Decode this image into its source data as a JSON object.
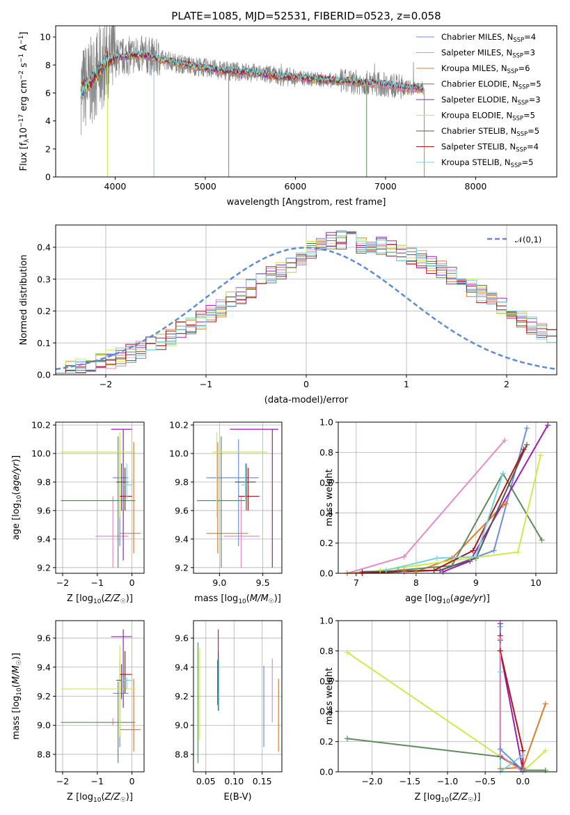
{
  "figure": {
    "title": "PLATE=1085, MJD=52531, FIBERID=0523, z=0.058"
  },
  "colors": {
    "chab_miles": "#6a8fd8",
    "salp_miles": "#e68ac4",
    "krou_miles": "#e07b2a",
    "chab_elodie": "#5c8a5c",
    "salp_elodie": "#9b1bb8",
    "krou_elodie": "#cfe84a",
    "chab_stelib": "#555555",
    "salp_stelib": "#b01515",
    "krou_stelib": "#72d6e0",
    "data_gray": "#808080",
    "gauss": "#5b8bd6"
  },
  "chart_data": [
    {
      "id": "spectrum",
      "type": "line",
      "xlabel": "wavelength [Angstrom, rest frame]",
      "ylabel": "Flux [f",
      "ylabel_full": "Flux [fλ10−17 erg cm−2 s−1 A−1]",
      "xlim": [
        3340,
        8900
      ],
      "ylim": [
        0,
        10.8
      ],
      "xticks": [
        "4000",
        "5000",
        "6000",
        "7000",
        "8000"
      ],
      "yticks": [
        "0",
        "2",
        "4",
        "6",
        "8",
        "10"
      ],
      "continuum": {
        "x": [
          3620,
          3700,
          3800,
          3900,
          4000,
          4100,
          4200,
          4300,
          4400,
          4500,
          4600,
          4700,
          4800,
          4900,
          5000,
          5200,
          5400,
          5600,
          5800,
          6000,
          6200,
          6400,
          6600,
          6800,
          7000,
          7200,
          7400
        ],
        "y": [
          6.2,
          6.6,
          7.4,
          8.3,
          8.5,
          8.6,
          8.7,
          8.7,
          8.6,
          8.4,
          8.3,
          8.1,
          8.0,
          7.9,
          7.8,
          7.6,
          7.5,
          7.4,
          7.2,
          7.1,
          7.0,
          6.9,
          6.8,
          6.7,
          6.6,
          6.4,
          6.3
        ]
      },
      "legend": [
        {
          "label": "Chabrier MILES, N",
          "sub": "SSP",
          "suffix": "=4",
          "color_key": "chab_miles"
        },
        {
          "label": "Salpeter MILES, N",
          "sub": "SSP",
          "suffix": "=3",
          "color_key": "salp_miles"
        },
        {
          "label": "Kroupa MILES, N",
          "sub": "SSP",
          "suffix": "=6",
          "color_key": "krou_miles"
        },
        {
          "label": "Chabrier ELODIE, N",
          "sub": "SSP",
          "suffix": "=5",
          "color_key": "chab_elodie"
        },
        {
          "label": "Salpeter ELODIE, N",
          "sub": "SSP",
          "suffix": "=3",
          "color_key": "salp_elodie"
        },
        {
          "label": "Kroupa ELODIE, N",
          "sub": "SSP",
          "suffix": "=5",
          "color_key": "krou_elodie"
        },
        {
          "label": "Chabrier STELIB, N",
          "sub": "SSP",
          "suffix": "=5",
          "color_key": "chab_stelib"
        },
        {
          "label": "Salpeter STELIB, N",
          "sub": "SSP",
          "suffix": "=4",
          "color_key": "salp_stelib"
        },
        {
          "label": "Kroupa STELIB, N",
          "sub": "SSP",
          "suffix": "=5",
          "color_key": "krou_stelib"
        }
      ]
    },
    {
      "id": "residuals",
      "type": "histogram",
      "xlabel": "(data-model)/error",
      "ylabel": "Normed distribution",
      "xlim": [
        -2.5,
        2.5
      ],
      "ylim": [
        0,
        0.47
      ],
      "xticks": [
        "−2",
        "−1",
        "0",
        "1",
        "2"
      ],
      "yticks": [
        "0.0",
        "0.1",
        "0.2",
        "0.3",
        "0.4"
      ],
      "legend": "𝒩(0,1)",
      "bin_width": 0.1,
      "bin_start": -2.5,
      "base_heights": [
        0.018,
        0.021,
        0.026,
        0.032,
        0.04,
        0.048,
        0.056,
        0.066,
        0.078,
        0.09,
        0.104,
        0.12,
        0.137,
        0.154,
        0.172,
        0.191,
        0.211,
        0.231,
        0.251,
        0.271,
        0.291,
        0.31,
        0.328,
        0.345,
        0.361,
        0.375,
        0.387,
        0.397,
        0.404,
        0.408,
        0.41,
        0.408,
        0.404,
        0.397,
        0.387,
        0.375,
        0.361,
        0.345,
        0.328,
        0.31,
        0.291,
        0.271,
        0.251,
        0.231,
        0.211,
        0.191,
        0.172,
        0.154,
        0.137,
        0.12
      ]
    },
    {
      "id": "age_vs_z",
      "type": "errorbar",
      "xlabel": "Z [log",
      "xlabel_full": "Z [log10(Z/Z☉)]",
      "ylabel": "age  [log",
      "ylabel_full": "age  [log10(age/yr)]",
      "xlim": [
        -2.2,
        0.35
      ],
      "ylim": [
        9.16,
        10.22
      ],
      "xticks": [
        "−2",
        "−1",
        "0"
      ],
      "yticks": [
        "9.2",
        "9.4",
        "9.6",
        "9.8",
        "10.0",
        "10.2"
      ],
      "points": [
        {
          "c": "chab_miles",
          "x": -0.35,
          "xe": [
            -0.55,
            -0.1
          ],
          "y": 9.83,
          "ye": [
            9.35,
            10.1
          ]
        },
        {
          "c": "salp_miles",
          "x": -0.55,
          "xe": [
            -1.05,
            -0.1
          ],
          "y": 9.42,
          "ye": [
            9.2,
            9.7
          ]
        },
        {
          "c": "krou_miles",
          "x": 0.05,
          "xe": [
            -0.35,
            0.25
          ],
          "y": 9.44,
          "ye": [
            9.3,
            10.08
          ]
        },
        {
          "c": "chab_elodie",
          "x": -0.4,
          "xe": [
            -2.05,
            0.1
          ],
          "y": 9.67,
          "ye": [
            9.2,
            10.12
          ]
        },
        {
          "c": "salp_elodie",
          "x": -0.25,
          "xe": [
            -0.6,
            0.0
          ],
          "y": 10.17,
          "ye": [
            9.25,
            10.17
          ]
        },
        {
          "c": "krou_elodie",
          "x": -0.35,
          "xe": [
            -2.05,
            0.1
          ],
          "y": 10.01,
          "ye": [
            9.55,
            10.15
          ]
        },
        {
          "c": "chab_stelib",
          "x": -0.3,
          "xe": [
            -0.45,
            -0.1
          ],
          "y": 9.8,
          "ye": [
            9.6,
            9.93
          ]
        },
        {
          "c": "salp_stelib",
          "x": -0.2,
          "xe": [
            -0.35,
            0.0
          ],
          "y": 9.7,
          "ye": [
            9.6,
            9.9
          ]
        },
        {
          "c": "krou_stelib",
          "x": -0.15,
          "xe": [
            -0.3,
            0.0
          ],
          "y": 9.78,
          "ye": [
            9.68,
            9.93
          ]
        }
      ]
    },
    {
      "id": "age_vs_mass",
      "type": "errorbar",
      "xlabel": "mass [log",
      "xlabel_full": "mass [log10(M/M☉)]",
      "xlim": [
        8.7,
        9.72
      ],
      "ylim": [
        9.16,
        10.22
      ],
      "xticks": [
        "9.0",
        "9.5"
      ],
      "yticks": [
        "9.2",
        "9.4",
        "9.6",
        "9.8",
        "10.0",
        "10.2"
      ],
      "points": [
        {
          "c": "chab_miles",
          "x": 9.22,
          "xe": [
            8.85,
            9.45
          ],
          "y": 9.83,
          "ye": [
            9.35,
            10.1
          ]
        },
        {
          "c": "salp_miles",
          "x": 9.25,
          "xe": [
            9.05,
            9.46
          ],
          "y": 9.42,
          "ye": [
            9.2,
            9.7
          ]
        },
        {
          "c": "krou_miles",
          "x": 8.98,
          "xe": [
            8.85,
            9.33
          ],
          "y": 9.44,
          "ye": [
            9.3,
            10.08
          ]
        },
        {
          "c": "chab_elodie",
          "x": 9.02,
          "xe": [
            8.74,
            9.3
          ],
          "y": 9.67,
          "ye": [
            9.2,
            10.12
          ]
        },
        {
          "c": "salp_elodie",
          "x": 9.61,
          "xe": [
            9.12,
            9.68
          ],
          "y": 10.17,
          "ye": [
            9.2,
            10.17
          ]
        },
        {
          "c": "krou_elodie",
          "x": 8.97,
          "xe": [
            8.92,
            9.55
          ],
          "y": 10.01,
          "ye": [
            9.55,
            10.15
          ]
        },
        {
          "c": "chab_stelib",
          "x": 9.31,
          "xe": [
            9.18,
            9.42
          ],
          "y": 9.8,
          "ye": [
            9.6,
            9.93
          ]
        },
        {
          "c": "salp_stelib",
          "x": 9.33,
          "xe": [
            9.22,
            9.46
          ],
          "y": 9.7,
          "ye": [
            9.6,
            9.9
          ]
        },
        {
          "c": "krou_stelib",
          "x": 9.3,
          "xe": [
            9.25,
            9.33
          ],
          "y": 9.78,
          "ye": [
            9.68,
            9.93
          ]
        }
      ]
    },
    {
      "id": "massweight_vs_age",
      "type": "line",
      "xlabel": "age  [log",
      "xlabel_full": "age  [log10(age/yr)]",
      "ylabel": "mass weight",
      "xlim": [
        6.7,
        10.35
      ],
      "ylim": [
        0,
        1.0
      ],
      "xticks": [
        "7",
        "8",
        "9",
        "10"
      ],
      "yticks": [
        "0.0",
        "0.2",
        "0.4",
        "0.6",
        "0.8",
        "1.0"
      ],
      "series": [
        {
          "c": "chab_miles",
          "x": [
            7.8,
            8.4,
            9.3,
            9.85
          ],
          "y": [
            0.01,
            0.02,
            0.15,
            0.96
          ]
        },
        {
          "c": "salp_miles",
          "x": [
            6.85,
            7.8,
            9.48
          ],
          "y": [
            0.0,
            0.11,
            0.88
          ]
        },
        {
          "c": "krou_miles",
          "x": [
            6.85,
            7.8,
            8.0,
            8.6,
            9.45,
            9.5
          ],
          "y": [
            0.0,
            0.02,
            0.01,
            0.1,
            0.45,
            0.46
          ]
        },
        {
          "c": "chab_elodie",
          "x": [
            7.7,
            8.6,
            9.45,
            10.1
          ],
          "y": [
            0.02,
            0.05,
            0.66,
            0.22
          ]
        },
        {
          "c": "salp_elodie",
          "x": [
            8.45,
            8.9,
            10.2
          ],
          "y": [
            0.01,
            0.08,
            0.98
          ]
        },
        {
          "c": "krou_elodie",
          "x": [
            7.4,
            8.0,
            8.9,
            9.7,
            10.08
          ],
          "y": [
            0.02,
            0.05,
            0.1,
            0.14,
            0.78
          ]
        },
        {
          "c": "chab_stelib",
          "x": [
            7.1,
            8.4,
            9.0,
            9.85
          ],
          "y": [
            0.01,
            0.02,
            0.1,
            0.85
          ]
        },
        {
          "c": "salp_stelib",
          "x": [
            7.1,
            8.3,
            8.95,
            9.8
          ],
          "y": [
            0.0,
            0.02,
            0.15,
            0.82
          ]
        },
        {
          "c": "krou_stelib",
          "x": [
            7.5,
            8.35,
            9.0,
            9.45
          ],
          "y": [
            0.02,
            0.1,
            0.11,
            0.66
          ]
        }
      ]
    },
    {
      "id": "mass_vs_z",
      "type": "errorbar",
      "xlabel": "Z [log",
      "xlabel_full": "Z [log10(Z/Z☉)]",
      "ylabel": "mass [log",
      "ylabel_full": "mass [log10(M/M☉)]",
      "xlim": [
        -2.2,
        0.35
      ],
      "ylim": [
        8.68,
        9.72
      ],
      "xticks": [
        "−2",
        "−1",
        "0"
      ],
      "yticks": [
        "8.8",
        "9.0",
        "9.2",
        "9.4",
        "9.6"
      ],
      "points": [
        {
          "c": "chab_miles",
          "x": -0.35,
          "xe": [
            -0.55,
            -0.1
          ],
          "y": 9.22,
          "ye": [
            8.85,
            9.45
          ]
        },
        {
          "c": "salp_miles",
          "x": -0.55,
          "xe": [
            -1.05,
            -0.1
          ],
          "y": 9.02,
          "ye": [
            9.0,
            9.05
          ]
        },
        {
          "c": "krou_miles",
          "x": 0.05,
          "xe": [
            -0.35,
            0.25
          ],
          "y": 8.97,
          "ye": [
            8.82,
            9.32
          ]
        },
        {
          "c": "chab_elodie",
          "x": -0.4,
          "xe": [
            -2.05,
            0.1
          ],
          "y": 9.02,
          "ye": [
            8.74,
            9.3
          ]
        },
        {
          "c": "salp_elodie",
          "x": -0.25,
          "xe": [
            -0.6,
            0.0
          ],
          "y": 9.61,
          "ye": [
            9.12,
            9.66
          ]
        },
        {
          "c": "krou_elodie",
          "x": -0.35,
          "xe": [
            -2.05,
            0.1
          ],
          "y": 9.25,
          "ye": [
            8.92,
            9.55
          ]
        },
        {
          "c": "chab_stelib",
          "x": -0.3,
          "xe": [
            -0.45,
            -0.1
          ],
          "y": 9.31,
          "ye": [
            9.18,
            9.42
          ]
        },
        {
          "c": "salp_stelib",
          "x": -0.2,
          "xe": [
            -0.35,
            0.0
          ],
          "y": 9.35,
          "ye": [
            9.22,
            9.51
          ]
        },
        {
          "c": "krou_stelib",
          "x": -0.15,
          "xe": [
            -0.3,
            0.0
          ],
          "y": 9.31,
          "ye": [
            9.25,
            9.33
          ]
        }
      ]
    },
    {
      "id": "mass_vs_ebv",
      "type": "errorbar",
      "xlabel": "E(B-V)",
      "xlim": [
        0.028,
        0.185
      ],
      "ylim": [
        8.68,
        9.72
      ],
      "xticks": [
        "0.05",
        "0.10",
        "0.15"
      ],
      "yticks": [
        "8.8",
        "9.0",
        "9.2",
        "9.4",
        "9.6"
      ],
      "points": [
        {
          "c": "chab_miles",
          "x": 0.153,
          "y": 9.22,
          "ye": [
            8.85,
            9.41
          ]
        },
        {
          "c": "salp_miles",
          "x": 0.168,
          "y": 9.2,
          "ye": [
            9.02,
            9.46
          ]
        },
        {
          "c": "krou_miles",
          "x": 0.179,
          "y": 9.0,
          "ye": [
            8.82,
            9.32
          ]
        },
        {
          "c": "chab_elodie",
          "x": 0.036,
          "y": 9.15,
          "ye": [
            8.74,
            9.57
          ]
        },
        {
          "c": "salp_elodie",
          "x": 0.072,
          "y": 9.3,
          "ye": [
            9.1,
            9.66
          ]
        },
        {
          "c": "krou_elodie",
          "x": 0.039,
          "y": 9.2,
          "ye": [
            8.9,
            9.53
          ]
        },
        {
          "c": "chab_stelib",
          "x": 0.071,
          "y": 9.31,
          "ye": [
            9.14,
            9.45
          ]
        },
        {
          "c": "salp_stelib",
          "x": 0.072,
          "y": 9.35,
          "ye": [
            9.22,
            9.51
          ]
        },
        {
          "c": "krou_stelib",
          "x": 0.073,
          "y": 9.3,
          "ye": [
            9.1,
            9.45
          ]
        }
      ]
    },
    {
      "id": "massweight_vs_z",
      "type": "line",
      "xlabel": "Z [log",
      "xlabel_full": "Z [log10(Z/Z☉)]",
      "ylabel": "mass weight",
      "xlim": [
        -2.45,
        0.45
      ],
      "ylim": [
        0,
        1.0
      ],
      "xticks": [
        "−2.0",
        "−1.5",
        "−1.0",
        "−0.5",
        "0.0"
      ],
      "yticks": [
        "0.0",
        "0.2",
        "0.4",
        "0.6",
        "0.8",
        "1.0"
      ],
      "series": [
        {
          "c": "krou_elodie",
          "x": [
            -2.33,
            -0.3,
            0.0,
            0.3
          ],
          "y": [
            0.79,
            0.1,
            0.0,
            0.14
          ]
        },
        {
          "c": "chab_elodie",
          "x": [
            -2.33,
            -0.3,
            0.0,
            0.3
          ],
          "y": [
            0.22,
            0.1,
            0.01,
            0.01
          ]
        },
        {
          "c": "krou_miles",
          "x": [
            -0.3,
            0.0,
            0.3
          ],
          "y": [
            0.02,
            0.03,
            0.45
          ]
        },
        {
          "c": "salp_elodie",
          "x": [
            -0.3,
            -0.3,
            0.0
          ],
          "y": [
            0.98,
            0.8,
            0.01
          ]
        },
        {
          "c": "salp_stelib",
          "x": [
            -0.3,
            -0.3,
            0.0,
            0.0
          ],
          "y": [
            0.9,
            0.8,
            0.14,
            0.0
          ]
        },
        {
          "c": "chab_stelib",
          "x": [
            -0.3,
            -0.3,
            0.0
          ],
          "y": [
            0.87,
            0.1,
            0.02
          ]
        },
        {
          "c": "krou_stelib",
          "x": [
            -0.3,
            -0.3,
            0.0
          ],
          "y": [
            0.66,
            0.0,
            0.11
          ]
        },
        {
          "c": "chab_miles",
          "x": [
            -0.3,
            -0.3,
            0.0
          ],
          "y": [
            0.96,
            0.15,
            0.01
          ]
        },
        {
          "c": "salp_miles",
          "x": [
            -0.3,
            -0.3,
            0.0
          ],
          "y": [
            0.88,
            0.11,
            0.0
          ]
        }
      ]
    }
  ]
}
